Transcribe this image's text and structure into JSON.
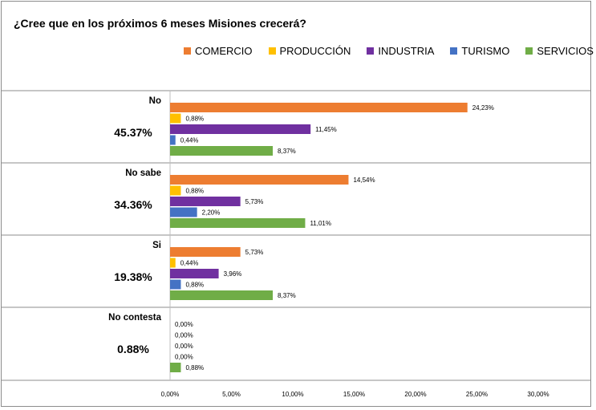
{
  "chart_data": {
    "type": "bar",
    "orientation": "horizontal",
    "title": "¿Cree que en los próximos 6 meses Misiones crecerá?",
    "legend_position": "top-right",
    "series": [
      {
        "name": "COMERCIO",
        "color": "#ED7D31"
      },
      {
        "name": "PRODUCCIÓN",
        "color": "#FFC000"
      },
      {
        "name": "INDUSTRIA",
        "color": "#7030A0"
      },
      {
        "name": "TURISMO",
        "color": "#4472C4"
      },
      {
        "name": "SERVICIOS",
        "color": "#70AD47"
      }
    ],
    "groups": [
      {
        "label": "No",
        "total": "45.37%",
        "values": [
          24.23,
          0.88,
          11.45,
          0.44,
          8.37
        ],
        "value_labels": [
          "24,23%",
          "0,88%",
          "11,45%",
          "0,44%",
          "8,37%"
        ]
      },
      {
        "label": "No sabe",
        "total": "34.36%",
        "values": [
          14.54,
          0.88,
          5.73,
          2.2,
          11.01
        ],
        "value_labels": [
          "14,54%",
          "0,88%",
          "5,73%",
          "2,20%",
          "11,01%"
        ]
      },
      {
        "label": "Si",
        "total": "19.38%",
        "values": [
          5.73,
          0.44,
          3.96,
          0.88,
          8.37
        ],
        "value_labels": [
          "5,73%",
          "0,44%",
          "3,96%",
          "0,88%",
          "8,37%"
        ]
      },
      {
        "label": "No contesta",
        "total": "0.88%",
        "values": [
          0,
          0,
          0,
          0,
          0.88
        ],
        "value_labels": [
          "0,00%",
          "0,00%",
          "0,00%",
          "0,00%",
          "0,88%"
        ]
      }
    ],
    "xlim": [
      0,
      30
    ],
    "x_ticks": [
      0,
      5,
      10,
      15,
      20,
      25,
      30
    ],
    "x_tick_labels": [
      "0,00%",
      "5,00%",
      "10,00%",
      "15,00%",
      "20,00%",
      "25,00%",
      "30,00%"
    ],
    "grid": false
  }
}
